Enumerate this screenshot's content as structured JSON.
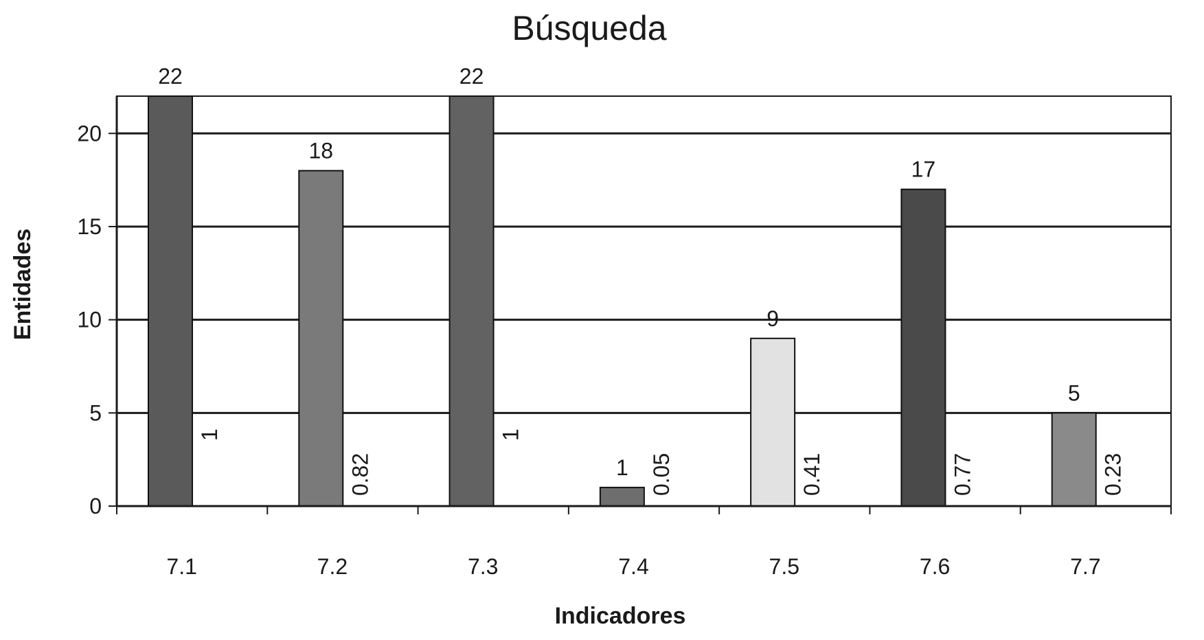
{
  "chart_data": {
    "type": "bar",
    "title": "Búsqueda",
    "xlabel": "Indicadores",
    "ylabel": "Entidades",
    "categories": [
      "7.1",
      "7.2",
      "7.3",
      "7.4",
      "7.5",
      "7.6",
      "7.7"
    ],
    "series": [
      {
        "values": [
          22,
          18,
          22,
          1,
          9,
          17,
          5
        ],
        "value_labels": [
          "22",
          "18",
          "22",
          "1",
          "9",
          "17",
          "5"
        ],
        "colors": [
          "#5a5a5a",
          "#7a7a7a",
          "#626262",
          "#6e6e6e",
          "#e2e2e2",
          "#4a4a4a",
          "#8a8a8a"
        ]
      },
      {
        "values": [
          1,
          0.82,
          1,
          0.05,
          0.41,
          0.77,
          0.23
        ],
        "value_labels": [
          "1",
          "0.82",
          "1",
          "0.05",
          "0.41",
          "0.77",
          "0.23"
        ]
      }
    ],
    "y_ticks": [
      "0",
      "5",
      "10",
      "15",
      "20"
    ],
    "ylim": [
      0,
      22
    ],
    "grid": true,
    "legend": "none"
  }
}
